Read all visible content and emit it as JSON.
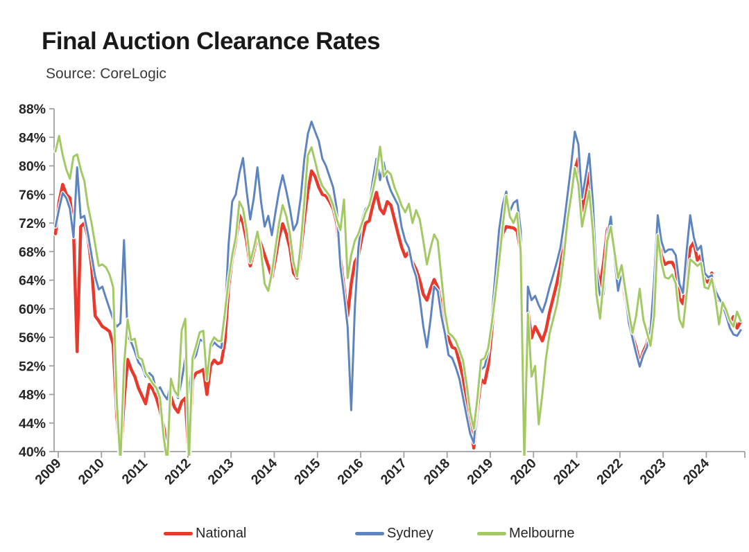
{
  "page": {
    "title": "Final Auction Clearance Rates",
    "source_note": "Source: CoreLogic"
  },
  "chart_data": {
    "type": "line",
    "title": "Final Auction Clearance Rates",
    "subtitle": "Source: CoreLogic",
    "x_unit": "month",
    "x_start": "2009-01",
    "x_end": "2024-11",
    "x_tick_labels": [
      "2009",
      "2010",
      "2011",
      "2012",
      "2013",
      "2014",
      "2015",
      "2016",
      "2017",
      "2018",
      "2019",
      "2020",
      "2021",
      "2022",
      "2023",
      "2024"
    ],
    "ylim": [
      40,
      88
    ],
    "y_ticks": [
      40,
      44,
      48,
      52,
      56,
      60,
      64,
      68,
      72,
      76,
      80,
      84,
      88
    ],
    "y_tick_suffix": "%",
    "grid": false,
    "legend_position": "bottom",
    "axis_color": "#a0a0a0",
    "label_color": "#262626",
    "series": [
      {
        "name": "National",
        "color": "#e8392d",
        "width": 4.5,
        "values": [
          70.5,
          75,
          77.4,
          76,
          75.5,
          71,
          54,
          71.5,
          72,
          70,
          66,
          59,
          58.3,
          57.5,
          57.2,
          56.8,
          55,
          45,
          39,
          47,
          52.9,
          51.5,
          50.5,
          48.9,
          47.8,
          46.7,
          49.4,
          48.7,
          47.5,
          45.7,
          43.5,
          40.2,
          47.7,
          46.2,
          45.5,
          47,
          47.5,
          39,
          50.1,
          51,
          51.2,
          51.5,
          48,
          52,
          52.8,
          52.3,
          52.5,
          55.5,
          63,
          67,
          69.5,
          73.1,
          72,
          69.5,
          66,
          68,
          70.3,
          69,
          67.5,
          66,
          64.4,
          67,
          70,
          71.9,
          70.5,
          68.5,
          65,
          64.3,
          68,
          72.5,
          76.5,
          79.3,
          78.5,
          77,
          76,
          75.8,
          75,
          74,
          72,
          67,
          63,
          59,
          63.5,
          66.5,
          67.5,
          70,
          72,
          72.3,
          74.5,
          76.3,
          74,
          73.3,
          75,
          74.5,
          72.5,
          70.5,
          68.6,
          67.3,
          68,
          66.5,
          65.5,
          64,
          62,
          61.2,
          62.8,
          64.1,
          63,
          60.5,
          58.5,
          55.8,
          54.6,
          54.4,
          52.5,
          50.4,
          47,
          43.5,
          40.5,
          46,
          50.1,
          49.6,
          52,
          57,
          62.5,
          67.5,
          70.5,
          71.5,
          71.4,
          71.3,
          70.9,
          68,
          39,
          59.7,
          55.9,
          57.5,
          56.5,
          55.5,
          57,
          59.5,
          61.5,
          63.5,
          66,
          69.3,
          74,
          77.4,
          79.5,
          81.1,
          73.5,
          76.5,
          79,
          74,
          66,
          63.1,
          66.5,
          71,
          72.3,
          67.5,
          63.1,
          65,
          61.4,
          58.5,
          56.2,
          54.6,
          52.4,
          54,
          55.1,
          57.6,
          62.5,
          70.8,
          67.5,
          66.2,
          66.5,
          66.5,
          65.5,
          61.5,
          60.7,
          64.5,
          68.5,
          69.3,
          66.8,
          67.5,
          64,
          63.7,
          65,
          62.5,
          61.2,
          60.8,
          59.5,
          57.9,
          58.9,
          57.3,
          58.2
        ]
      },
      {
        "name": "Sydney",
        "color": "#5e84c0",
        "width": 3,
        "values": [
          71.5,
          74,
          76.2,
          75.5,
          74,
          70,
          79.8,
          72.7,
          73,
          70.5,
          67.5,
          64.5,
          62.7,
          63.1,
          61.5,
          60,
          58.5,
          57.5,
          58,
          69.6,
          56.2,
          55.3,
          54,
          52.5,
          51.9,
          50.5,
          51,
          50.5,
          48.5,
          49,
          48,
          47.3,
          49.6,
          48.3,
          47.5,
          50,
          53.1,
          48.2,
          52.7,
          53.5,
          55.7,
          55.4,
          52,
          54.5,
          55.3,
          54.8,
          54.5,
          59,
          69,
          75,
          76,
          79,
          81.1,
          76.5,
          72.5,
          75.5,
          79.8,
          75,
          71.5,
          73,
          70.3,
          73.5,
          76.5,
          78.7,
          76.5,
          74,
          71,
          72,
          75.5,
          81,
          84.5,
          86.2,
          84.8,
          83.5,
          81,
          80,
          78.5,
          77,
          74,
          66,
          62,
          57.5,
          45.8,
          60,
          68.5,
          72.5,
          74,
          74.5,
          78,
          81,
          78,
          80.5,
          78,
          76.5,
          75.5,
          74.5,
          71.4,
          69.5,
          68.5,
          66,
          64.5,
          61.5,
          57.5,
          54.6,
          58.5,
          63.1,
          62.5,
          59,
          56.5,
          53.5,
          53.1,
          51.8,
          50.2,
          47.6,
          45,
          42.5,
          41.2,
          47,
          51.5,
          51.9,
          54,
          59,
          65,
          71,
          74.5,
          76.4,
          73.6,
          74.8,
          75.2,
          71,
          39.5,
          63.1,
          61.2,
          61.8,
          60.5,
          59.5,
          61,
          63,
          64.7,
          66.5,
          68.5,
          71.9,
          76,
          80.1,
          84.8,
          83,
          75.5,
          78.5,
          81.7,
          75,
          65,
          61.9,
          62,
          70,
          72.9,
          67,
          62.5,
          65.1,
          62,
          58,
          55.9,
          53.8,
          51.9,
          53.5,
          54.6,
          57,
          64,
          73.1,
          69.5,
          67.9,
          68.3,
          68.3,
          67.5,
          63.5,
          62.2,
          68,
          73.1,
          70,
          68.2,
          68.8,
          65,
          64.4,
          64.7,
          62.5,
          61.5,
          60.5,
          59,
          57.3,
          56.4,
          56.2,
          57
        ]
      },
      {
        "name": "Melbourne",
        "color": "#a2c964",
        "width": 3,
        "values": [
          82,
          84.2,
          81.5,
          79.5,
          78.2,
          81.3,
          81.6,
          79.5,
          77.9,
          74.4,
          72,
          69,
          66,
          66.2,
          65.8,
          64.8,
          63,
          47,
          38.5,
          52,
          58.5,
          55.6,
          55.8,
          53.2,
          52.9,
          51,
          50.3,
          49.5,
          48.9,
          47.5,
          42,
          38.5,
          50.2,
          48.5,
          47.8,
          57,
          58.6,
          38.5,
          53.1,
          54.8,
          56.7,
          56.9,
          50,
          55,
          56,
          55.5,
          55.5,
          59.5,
          64,
          67.5,
          70,
          75,
          74,
          71,
          66.5,
          68.5,
          70.8,
          68,
          63.5,
          62.5,
          65,
          68.5,
          72,
          74.5,
          73,
          70.5,
          66.5,
          64.5,
          69,
          75,
          81.5,
          82.6,
          80.6,
          78.5,
          77.2,
          76.5,
          75.8,
          74.5,
          72.5,
          71,
          75.3,
          64.3,
          67.5,
          69.5,
          70.5,
          72,
          73.5,
          74.5,
          76.5,
          79,
          82.7,
          78.5,
          79.3,
          78.8,
          77,
          75.8,
          74.4,
          73.5,
          74.7,
          72,
          73.8,
          72.5,
          69.5,
          66.2,
          68.5,
          70.4,
          69.5,
          64.5,
          59.5,
          56.6,
          56.2,
          55.5,
          54.2,
          52.8,
          49.5,
          45.5,
          43.2,
          47.5,
          52.8,
          53.1,
          54.5,
          58,
          62,
          66.5,
          71.5,
          75.8,
          72.9,
          72,
          73.4,
          68,
          38.5,
          59.3,
          50.5,
          52,
          43.8,
          48,
          53,
          56.5,
          58.5,
          60.5,
          63.5,
          67.5,
          72.5,
          75.8,
          79.7,
          77.4,
          71.5,
          74,
          76.5,
          71,
          62,
          58.6,
          64,
          69.5,
          71.5,
          68,
          64.3,
          66.1,
          62.7,
          59.5,
          56.6,
          59,
          62.8,
          58.5,
          56.7,
          54.8,
          59,
          70.3,
          66.5,
          64.4,
          64.2,
          64.8,
          63.5,
          58.5,
          57.4,
          62,
          66.9,
          66.5,
          66,
          66.4,
          63,
          62.8,
          64.2,
          61.5,
          57.8,
          60.9,
          59.8,
          58.3,
          57.5,
          59.6,
          58.3
        ]
      }
    ]
  }
}
